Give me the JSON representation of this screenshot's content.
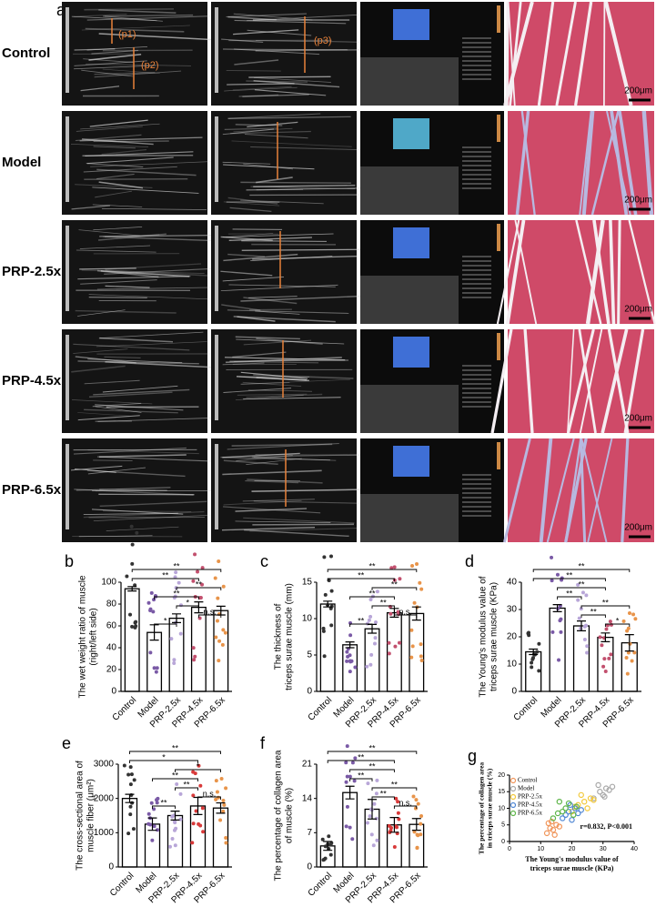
{
  "panel_a": {
    "label": "a",
    "rows": [
      {
        "label": "Control",
        "scale_bar": "200μm"
      },
      {
        "label": "Model",
        "scale_bar": "200μm"
      },
      {
        "label": "PRP-2.5x",
        "scale_bar": "200μm"
      },
      {
        "label": "PRP-4.5x",
        "scale_bar": "200μm"
      },
      {
        "label": "PRP-6.5x",
        "scale_bar": "200μm"
      }
    ],
    "annotations": [
      "(p1)",
      "(p2)",
      "(p3)"
    ]
  },
  "chart_data": [
    {
      "panel": "b",
      "type": "bar",
      "categories": [
        "Control",
        "Model",
        "PRP-2.5x",
        "PRP-4.5x",
        "PRP-6.5x"
      ],
      "values": [
        94,
        54,
        67,
        77,
        74
      ],
      "errors": [
        2,
        7,
        4,
        5,
        4
      ],
      "colors": [
        "#333333",
        "#7a5aa6",
        "#b8a6d8",
        "#c2506e",
        "#e8944a"
      ],
      "ylabel": [
        "The wet weight ratio of muscle",
        "(right/left side)"
      ],
      "ylim": [
        0,
        100
      ],
      "yticks": [
        0,
        20,
        40,
        60,
        80,
        100
      ],
      "significance": [
        {
          "groups": [
            "Control",
            "PRP-6.5x"
          ],
          "label": "**"
        },
        {
          "groups": [
            "Control",
            "PRP-4.5x"
          ],
          "label": "**"
        },
        {
          "groups": [
            "PRP-2.5x",
            "PRP-6.5x"
          ],
          "label": "**"
        },
        {
          "groups": [
            "Model",
            "PRP-4.5x"
          ],
          "label": "**"
        },
        {
          "groups": [
            "PRP-2.5x",
            "PRP-4.5x"
          ],
          "label": "*"
        },
        {
          "groups": [
            "PRP-4.5x",
            "PRP-6.5x"
          ],
          "label": "n.s."
        },
        {
          "groups": [
            "Model",
            "PRP-2.5x"
          ],
          "label": "*"
        }
      ]
    },
    {
      "panel": "c",
      "type": "bar",
      "categories": [
        "Control",
        "Model",
        "PRP-2.5x",
        "PRP-4.5x",
        "PRP-6.5x"
      ],
      "values": [
        12.0,
        6.4,
        8.6,
        10.8,
        10.7
      ],
      "errors": [
        0.4,
        0.4,
        0.6,
        0.6,
        0.9
      ],
      "colors": [
        "#333333",
        "#7a5aa6",
        "#b8a6d8",
        "#c2506e",
        "#e8944a"
      ],
      "ylabel": [
        "The thickness of",
        "triceps surae muscle (mm)"
      ],
      "ylim": [
        0,
        15
      ],
      "yticks": [
        0,
        5,
        10,
        15
      ],
      "significance": [
        {
          "groups": [
            "Control",
            "PRP-6.5x"
          ],
          "label": "**"
        },
        {
          "groups": [
            "Control",
            "PRP-4.5x"
          ],
          "label": "**"
        },
        {
          "groups": [
            "PRP-2.5x",
            "PRP-6.5x"
          ],
          "label": "**"
        },
        {
          "groups": [
            "Model",
            "PRP-4.5x"
          ],
          "label": "**"
        },
        {
          "groups": [
            "PRP-2.5x",
            "PRP-4.5x"
          ],
          "label": "**"
        },
        {
          "groups": [
            "PRP-4.5x",
            "PRP-6.5x"
          ],
          "label": "n.s."
        },
        {
          "groups": [
            "Model",
            "PRP-2.5x"
          ],
          "label": "**"
        }
      ]
    },
    {
      "panel": "d",
      "type": "bar",
      "categories": [
        "Control",
        "Model",
        "PRP-2.5x",
        "PRP-4.5x",
        "PRP-6.5x"
      ],
      "values": [
        14.5,
        30.5,
        24,
        19.8,
        17.8
      ],
      "errors": [
        1,
        1.3,
        1.8,
        1.6,
        3
      ],
      "colors": [
        "#333333",
        "#7a5aa6",
        "#b8a6d8",
        "#c2506e",
        "#e8944a"
      ],
      "ylabel": [
        "The Young's modulus value of",
        "triceps surae muscle (KPa)"
      ],
      "ylim": [
        0,
        40
      ],
      "yticks": [
        0,
        10,
        20,
        30,
        40
      ],
      "significance": [
        {
          "groups": [
            "Control",
            "PRP-6.5x"
          ],
          "label": "**"
        },
        {
          "groups": [
            "Control",
            "PRP-4.5x"
          ],
          "label": "**"
        },
        {
          "groups": [
            "Model",
            "PRP-4.5x"
          ],
          "label": "**"
        },
        {
          "groups": [
            "Model",
            "PRP-2.5x"
          ],
          "label": "**"
        },
        {
          "groups": [
            "PRP-2.5x",
            "PRP-6.5x"
          ],
          "label": "**"
        },
        {
          "groups": [
            "PRP-2.5x",
            "PRP-4.5x"
          ],
          "label": "**"
        },
        {
          "groups": [
            "PRP-4.5x",
            "PRP-6.5x"
          ],
          "label": "*"
        }
      ]
    },
    {
      "panel": "e",
      "type": "bar",
      "categories": [
        "Control",
        "Model",
        "PRP-2.5x",
        "PRP-4.5x",
        "PRP-6.5x"
      ],
      "values": [
        2000,
        1250,
        1500,
        1780,
        1720
      ],
      "errors": [
        120,
        180,
        130,
        250,
        150
      ],
      "colors": [
        "#333333",
        "#7a5aa6",
        "#b8a6d8",
        "#d83a3a",
        "#e8944a"
      ],
      "ylabel": [
        "The cross-sectional area of",
        "muscle fiber (μm²)"
      ],
      "ylim": [
        0,
        3000
      ],
      "yticks": [
        0,
        1000,
        2000,
        3000
      ],
      "significance": [
        {
          "groups": [
            "Control",
            "PRP-6.5x"
          ],
          "label": "**"
        },
        {
          "groups": [
            "Control",
            "PRP-4.5x"
          ],
          "label": "*"
        },
        {
          "groups": [
            "PRP-2.5x",
            "PRP-6.5x"
          ],
          "label": "*"
        },
        {
          "groups": [
            "Model",
            "PRP-4.5x"
          ],
          "label": "**"
        },
        {
          "groups": [
            "PRP-2.5x",
            "PRP-4.5x"
          ],
          "label": "**"
        },
        {
          "groups": [
            "PRP-4.5x",
            "PRP-6.5x"
          ],
          "label": "n.s."
        },
        {
          "groups": [
            "Model",
            "PRP-2.5x"
          ],
          "label": "**"
        }
      ]
    },
    {
      "panel": "f",
      "type": "bar",
      "categories": [
        "Control",
        "Model",
        "PRP-2.5x",
        "PRP-4.5x",
        "PRP-6.5x"
      ],
      "values": [
        4.3,
        15.2,
        11.8,
        8.6,
        8.7
      ],
      "errors": [
        0.9,
        1.3,
        2,
        1.5,
        1.2
      ],
      "colors": [
        "#333333",
        "#7a5aa6",
        "#b8a6d8",
        "#d83a3a",
        "#e8944a"
      ],
      "ylabel": [
        "The percentage of collagen area",
        "of muscle (%)"
      ],
      "ylim": [
        0,
        21
      ],
      "yticks": [
        0,
        7,
        14,
        21
      ],
      "significance": [
        {
          "groups": [
            "Control",
            "PRP-6.5x"
          ],
          "label": "**"
        },
        {
          "groups": [
            "Control",
            "PRP-4.5x"
          ],
          "label": "**"
        },
        {
          "groups": [
            "Model",
            "PRP-4.5x"
          ],
          "label": "**"
        },
        {
          "groups": [
            "Model",
            "PRP-2.5x"
          ],
          "label": "**"
        },
        {
          "groups": [
            "PRP-2.5x",
            "PRP-6.5x"
          ],
          "label": "**"
        },
        {
          "groups": [
            "PRP-2.5x",
            "PRP-4.5x"
          ],
          "label": "**"
        },
        {
          "groups": [
            "PRP-4.5x",
            "PRP-6.5x"
          ],
          "label": "n.s."
        }
      ]
    },
    {
      "panel": "g",
      "type": "scatter",
      "xlabel": [
        "The Young's modulus value of",
        "triceps surae muscle (KPa)"
      ],
      "ylabel": [
        "The percentage of collagen area",
        "in triceps surae muscle (%)"
      ],
      "annotation": "r=0.832, P<0.001",
      "xlim": [
        0,
        40
      ],
      "xticks": [
        0,
        10,
        20,
        30,
        40
      ],
      "ylim": [
        0,
        20
      ],
      "yticks": [
        0,
        5,
        10,
        15,
        20
      ],
      "legend": "upper left",
      "series": [
        {
          "name": "Control",
          "color": "#f0955a",
          "x": [
            12,
            13,
            14,
            15,
            13.5,
            16,
            14.5,
            12.5
          ],
          "y": [
            2.5,
            4,
            3.5,
            5,
            6,
            4.5,
            2,
            5.5
          ]
        },
        {
          "name": "Model",
          "color": "#a8a8a8",
          "x": [
            27,
            29,
            30,
            31,
            32,
            28.5,
            33,
            30.5
          ],
          "y": [
            13,
            15,
            14,
            16,
            15.5,
            17,
            16.5,
            13.5
          ]
        },
        {
          "name": "PRP-2.5x",
          "color": "#f2c83a",
          "x": [
            20,
            22,
            24,
            25,
            26,
            23,
            27,
            21
          ],
          "y": [
            9,
            11,
            12,
            10,
            13,
            14,
            12.5,
            10.5
          ]
        },
        {
          "name": "PRP-4.5x",
          "color": "#4f86d4",
          "x": [
            17,
            18,
            19,
            20,
            21,
            22,
            19.5,
            23
          ],
          "y": [
            7,
            8,
            9,
            6.5,
            10,
            8.5,
            11,
            9.5
          ]
        },
        {
          "name": "PRP-6.5x",
          "color": "#5db548",
          "x": [
            14,
            15.5,
            17,
            18,
            19,
            20.5,
            16,
            21.5
          ],
          "y": [
            7,
            8.5,
            9,
            10,
            11.5,
            8,
            12,
            10.5
          ]
        }
      ]
    }
  ]
}
